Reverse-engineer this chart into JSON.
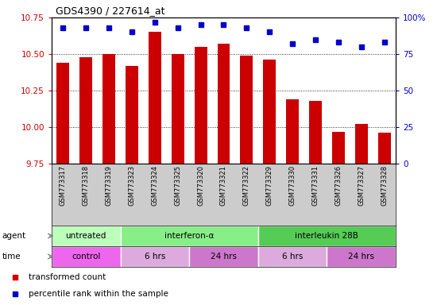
{
  "title": "GDS4390 / 227614_at",
  "samples": [
    "GSM773317",
    "GSM773318",
    "GSM773319",
    "GSM773323",
    "GSM773324",
    "GSM773325",
    "GSM773320",
    "GSM773321",
    "GSM773322",
    "GSM773329",
    "GSM773330",
    "GSM773331",
    "GSM773326",
    "GSM773327",
    "GSM773328"
  ],
  "bar_values": [
    10.44,
    10.48,
    10.5,
    10.42,
    10.65,
    10.5,
    10.55,
    10.57,
    10.49,
    10.46,
    10.19,
    10.18,
    9.97,
    10.02,
    9.96
  ],
  "dot_values": [
    93,
    93,
    93,
    90,
    97,
    93,
    95,
    95,
    93,
    90,
    82,
    85,
    83,
    80,
    83
  ],
  "ylim_left": [
    9.75,
    10.75
  ],
  "ylim_right": [
    0,
    100
  ],
  "yticks_left": [
    9.75,
    10.0,
    10.25,
    10.5,
    10.75
  ],
  "yticks_right": [
    0,
    25,
    50,
    75,
    100
  ],
  "bar_color": "#cc0000",
  "dot_color": "#0000cc",
  "agent_groups": [
    {
      "label": "untreated",
      "start": 0,
      "end": 3,
      "color": "#bbffbb"
    },
    {
      "label": "interferon-α",
      "start": 3,
      "end": 9,
      "color": "#88ee88"
    },
    {
      "label": "interleukin 28B",
      "start": 9,
      "end": 15,
      "color": "#55cc55"
    }
  ],
  "time_groups": [
    {
      "label": "control",
      "start": 0,
      "end": 3,
      "color": "#ee66ee"
    },
    {
      "label": "6 hrs",
      "start": 3,
      "end": 6,
      "color": "#ddaadd"
    },
    {
      "label": "24 hrs",
      "start": 6,
      "end": 9,
      "color": "#cc77cc"
    },
    {
      "label": "6 hrs",
      "start": 9,
      "end": 12,
      "color": "#ddaadd"
    },
    {
      "label": "24 hrs",
      "start": 12,
      "end": 15,
      "color": "#cc77cc"
    }
  ],
  "legend_items": [
    {
      "label": "transformed count",
      "color": "#cc0000"
    },
    {
      "label": "percentile rank within the sample",
      "color": "#0000cc"
    }
  ],
  "background_color": "#ffffff",
  "tick_color_left": "#cc0000",
  "tick_color_right": "#0000cc",
  "agent_label": "agent",
  "time_label": "time",
  "sample_bg": "#cccccc",
  "plot_bg": "#ffffff"
}
